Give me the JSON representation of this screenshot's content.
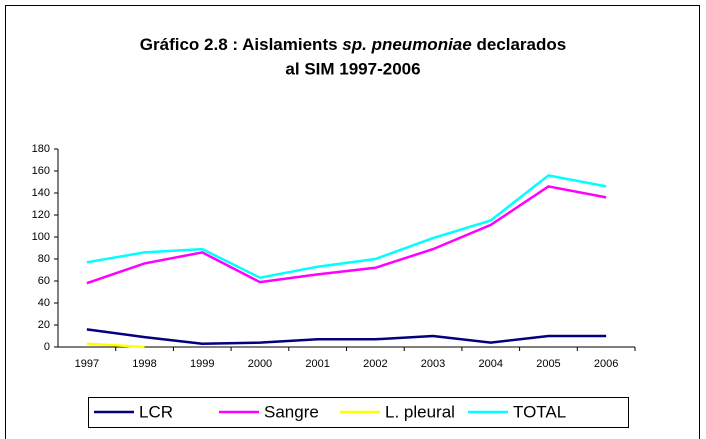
{
  "chart_data": {
    "type": "line",
    "title": [
      "Gráfico 2.8 : Aislamients",
      "sp. pneumoniae",
      "declarados",
      "al SIM 1997-2006"
    ],
    "categories": [
      "1997",
      "1998",
      "1999",
      "2000",
      "2001",
      "2002",
      "2003",
      "2004",
      "2005",
      "2006"
    ],
    "series": [
      {
        "name": "LCR",
        "color": "#000080",
        "values": [
          16,
          9,
          3,
          4,
          7,
          7,
          10,
          4,
          10,
          10
        ]
      },
      {
        "name": "Sangre",
        "color": "#ff00ff",
        "values": [
          58,
          76,
          86,
          59,
          66,
          72,
          89,
          111,
          146,
          136
        ]
      },
      {
        "name": "L. pleural",
        "color": "#ffff00",
        "values": [
          3,
          0,
          null,
          null,
          null,
          null,
          null,
          null,
          null,
          null
        ]
      },
      {
        "name": "TOTAL",
        "color": "#00ffff",
        "values": [
          77,
          86,
          89,
          63,
          73,
          80,
          99,
          115,
          156,
          146
        ]
      }
    ],
    "ylim": [
      0,
      180
    ],
    "yticks": [
      0,
      20,
      40,
      60,
      80,
      100,
      120,
      140,
      160,
      180
    ],
    "grid": false,
    "legend": "bottom"
  }
}
